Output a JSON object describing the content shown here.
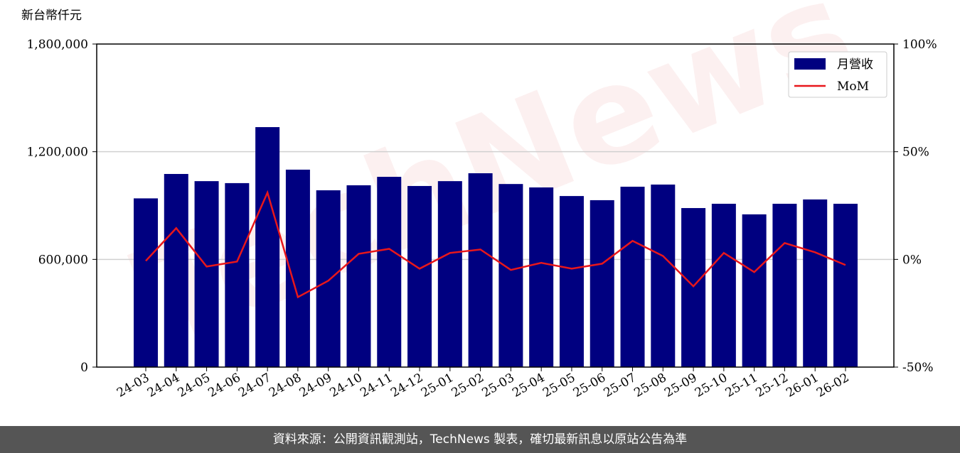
{
  "chart_data": {
    "type": "bar",
    "y_label": "新台幣仟元",
    "watermark": "TechNews",
    "categories": [
      "24-03",
      "24-04",
      "24-05",
      "24-06",
      "24-07",
      "24-08",
      "24-09",
      "24-10",
      "24-11",
      "24-12",
      "25-01",
      "25-02",
      "25-03",
      "25-04",
      "25-05",
      "25-06",
      "25-07",
      "25-08",
      "25-09",
      "25-10",
      "25-11",
      "25-12",
      "26-01",
      "26-02"
    ],
    "series": [
      {
        "name": "月營收",
        "color": "#000080",
        "type": "bar",
        "values": [
          940000,
          1076000,
          1036000,
          1025000,
          1337000,
          1100000,
          985000,
          1013000,
          1060000,
          1009000,
          1036000,
          1080000,
          1020000,
          1001000,
          953000,
          930000,
          1005000,
          1017000,
          886000,
          910000,
          851000,
          910000,
          934000,
          910000
        ]
      },
      {
        "name": "MoM",
        "color": "#e8171b",
        "type": "line",
        "axis": "y2",
        "values": [
          -0.7,
          14.5,
          -3.3,
          -1.0,
          31,
          -17.5,
          -9.9,
          2.6,
          4.9,
          -4.3,
          3.0,
          4.6,
          -4.9,
          -1.6,
          -4.3,
          -2.0,
          8.6,
          1.6,
          -12.5,
          3.0,
          -5.9,
          7.6,
          3.3,
          -2.6
        ]
      }
    ],
    "ylim": [
      0,
      1800000
    ],
    "yticks": [
      {
        "value": 0,
        "label": "0"
      },
      {
        "value": 600000,
        "label": "600,000"
      },
      {
        "value": 1200000,
        "label": "1,200,000"
      },
      {
        "value": 1800000,
        "label": "1,800,000"
      }
    ],
    "y2lim": [
      -50,
      100
    ],
    "y2ticks": [
      {
        "value": -50,
        "label": "-50%"
      },
      {
        "value": 0,
        "label": "0%"
      },
      {
        "value": 50,
        "label": "50%"
      },
      {
        "value": 100,
        "label": "100%"
      }
    ],
    "grid": true,
    "legend": "upper right"
  },
  "footer": "資料來源：公開資訊觀測站，TechNews 製表，確切最新訊息以原站公告為準"
}
